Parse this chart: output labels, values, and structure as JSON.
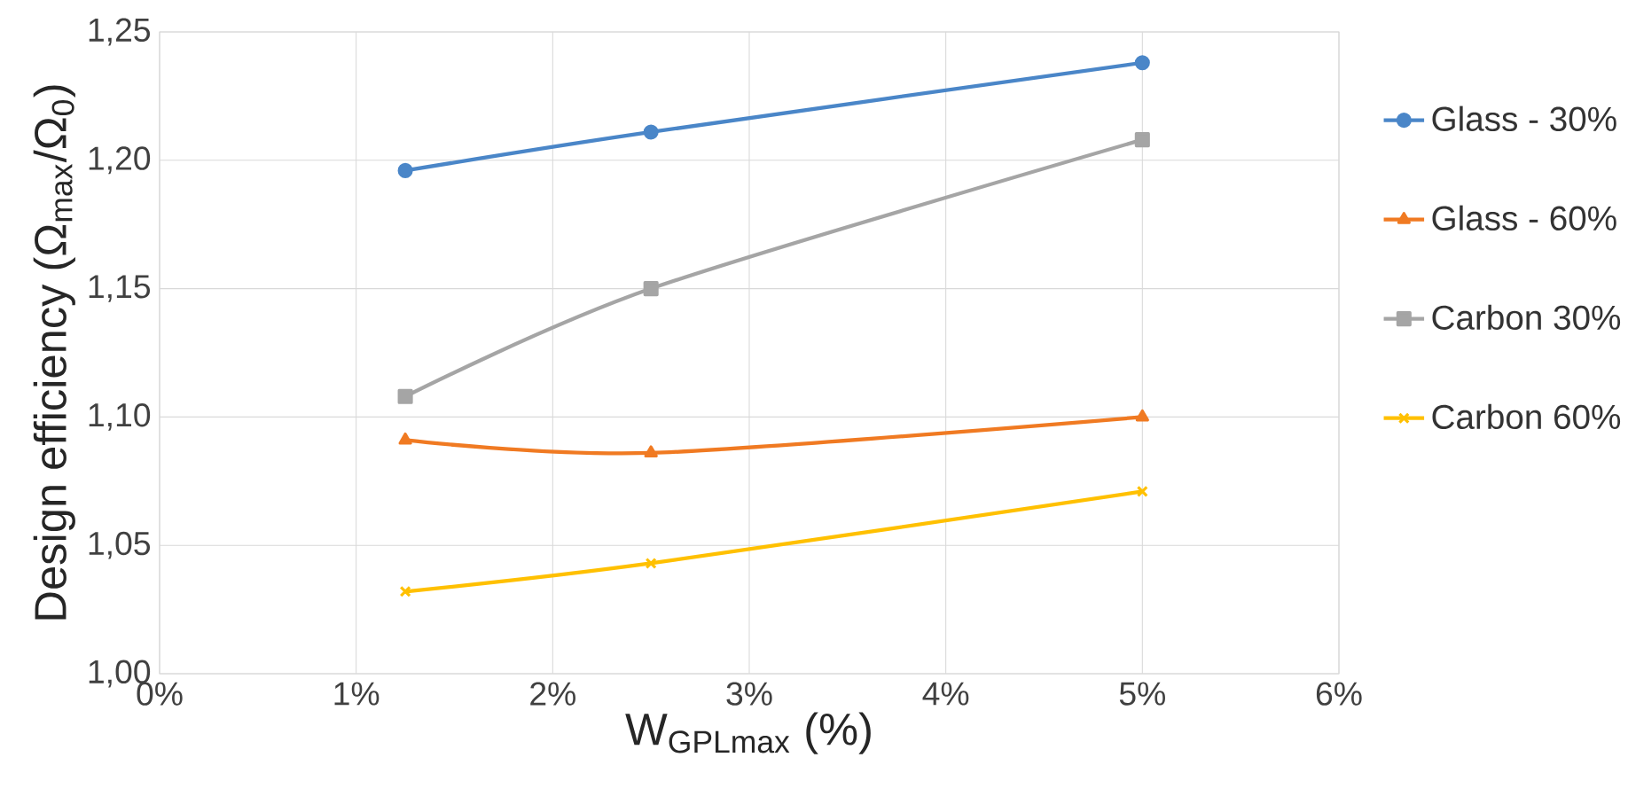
{
  "chart_data": {
    "type": "line",
    "xlabel": "W$_{GPLmax}$ (%)",
    "ylabel": "Design efficiency (Ω$_{max}$/Ω$_{0}$)",
    "x": [
      1.25,
      2.5,
      5
    ],
    "series": [
      {
        "name": "Glass - 30%",
        "color": "#4a86c8",
        "marker": "circle",
        "values": [
          1.196,
          1.211,
          1.238
        ]
      },
      {
        "name": "Glass - 60%",
        "color": "#f07a22",
        "marker": "triangle",
        "values": [
          1.091,
          1.086,
          1.1
        ]
      },
      {
        "name": "Carbon 30%",
        "color": "#a5a5a5",
        "marker": "square",
        "values": [
          1.108,
          1.15,
          1.208
        ]
      },
      {
        "name": "Carbon 60%",
        "color": "#ffc000",
        "marker": "cross",
        "values": [
          1.032,
          1.043,
          1.071
        ]
      }
    ],
    "xlim": [
      0,
      6
    ],
    "xticks": [
      {
        "value": 0,
        "label": "0%"
      },
      {
        "value": 1,
        "label": "1%"
      },
      {
        "value": 2,
        "label": "2%"
      },
      {
        "value": 3,
        "label": "3%"
      },
      {
        "value": 4,
        "label": "4%"
      },
      {
        "value": 5,
        "label": "5%"
      },
      {
        "value": 6,
        "label": "6%"
      }
    ],
    "ylim": [
      1.0,
      1.25
    ],
    "yticks": [
      {
        "value": 1.0,
        "label": "1,00"
      },
      {
        "value": 1.05,
        "label": "1,05"
      },
      {
        "value": 1.1,
        "label": "1,10"
      },
      {
        "value": 1.15,
        "label": "1,15"
      },
      {
        "value": 1.2,
        "label": "1,20"
      },
      {
        "value": 1.25,
        "label": "1,25"
      }
    ],
    "grid": true,
    "legend": "right",
    "line_style": "solid"
  }
}
